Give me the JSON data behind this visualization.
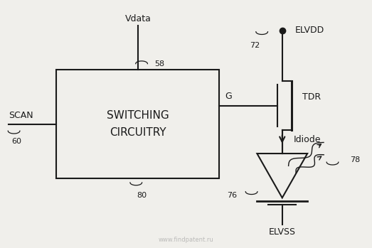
{
  "bg_color": "#f0efeb",
  "line_color": "#1a1a1a",
  "scan_label": "SCAN",
  "scan_num": "60",
  "vdata_label": "Vdata",
  "vdata_num": "58",
  "box_text": "SWITCHING\nCIRCUITRY",
  "box_num": "80",
  "g_label": "G",
  "tdr_label": "TDR",
  "idiode_label": "Idiode",
  "elvdd_label": "ELVDD",
  "elvdd_num": "72",
  "elvss_label": "ELVSS",
  "num78": "78",
  "num76": "76"
}
